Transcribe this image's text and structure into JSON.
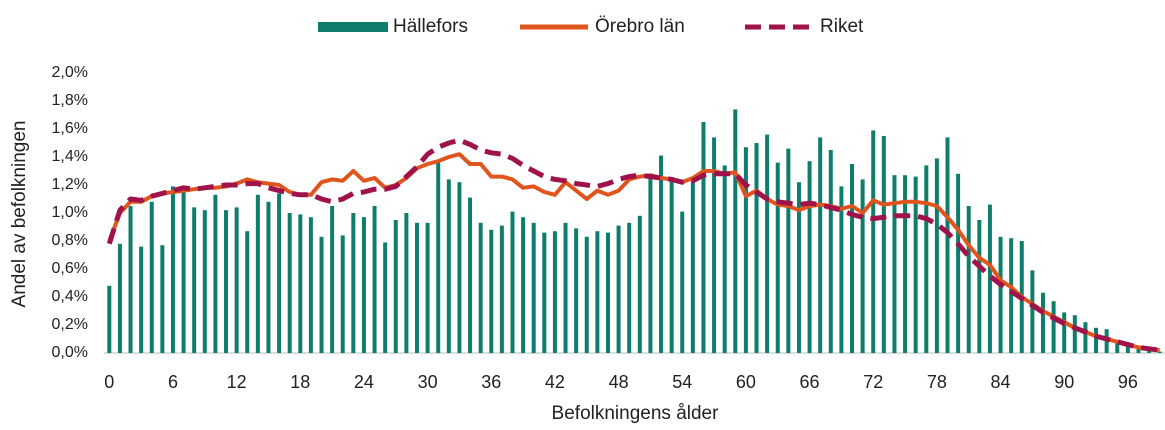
{
  "chart_data": {
    "type": "bar_line",
    "x_label": "Befolkningens ålder",
    "y_label": "Andel av befolkningen",
    "categories": [
      "0",
      null,
      null,
      null,
      null,
      null,
      "6",
      null,
      null,
      null,
      null,
      null,
      "12",
      null,
      null,
      null,
      null,
      null,
      "18",
      null,
      null,
      null,
      null,
      null,
      "24",
      null,
      null,
      null,
      null,
      null,
      "30",
      null,
      null,
      null,
      null,
      null,
      "36",
      null,
      null,
      null,
      null,
      null,
      "42",
      null,
      null,
      null,
      null,
      null,
      "48",
      null,
      null,
      null,
      null,
      null,
      "54",
      null,
      null,
      null,
      null,
      null,
      "60",
      null,
      null,
      null,
      null,
      null,
      "66",
      null,
      null,
      null,
      null,
      null,
      "72",
      null,
      null,
      null,
      null,
      null,
      "78",
      null,
      null,
      null,
      null,
      null,
      "84",
      null,
      null,
      null,
      null,
      null,
      "90",
      null,
      null,
      null,
      null,
      null,
      "96",
      null,
      null,
      null
    ],
    "series": [
      {
        "name": "Hällefors",
        "kind": "bar",
        "color": "#0f7d6c",
        "values": [
          0.48,
          0.78,
          1.05,
          0.76,
          1.08,
          0.77,
          1.19,
          1.17,
          1.04,
          1.02,
          1.13,
          1.02,
          1.04,
          0.87,
          1.13,
          1.08,
          1.14,
          1.0,
          0.99,
          0.97,
          0.83,
          1.05,
          0.84,
          1.0,
          0.97,
          1.05,
          0.79,
          0.95,
          1.0,
          0.93,
          0.93,
          1.36,
          1.24,
          1.22,
          1.11,
          0.93,
          0.88,
          0.91,
          1.01,
          0.97,
          0.93,
          0.86,
          0.87,
          0.93,
          0.89,
          0.83,
          0.87,
          0.86,
          0.91,
          0.93,
          0.98,
          1.26,
          1.41,
          1.24,
          1.01,
          1.23,
          1.65,
          1.54,
          1.34,
          1.74,
          1.47,
          1.5,
          1.56,
          1.36,
          1.46,
          1.22,
          1.37,
          1.54,
          1.45,
          1.19,
          1.35,
          1.24,
          1.59,
          1.55,
          1.27,
          1.27,
          1.26,
          1.34,
          1.39,
          1.54,
          1.28,
          1.05,
          0.95,
          1.06,
          0.83,
          0.82,
          0.8,
          0.59,
          0.43,
          0.37,
          0.29,
          0.27,
          0.22,
          0.18,
          0.17,
          0.08,
          0.05,
          0.03,
          0.02,
          0.01
        ]
      },
      {
        "name": "Örebro län",
        "kind": "line",
        "color": "#e0541e",
        "values": [
          0.8,
          1.0,
          1.08,
          1.08,
          1.12,
          1.14,
          1.15,
          1.16,
          1.17,
          1.18,
          1.18,
          1.19,
          1.21,
          1.24,
          1.22,
          1.21,
          1.2,
          1.15,
          1.13,
          1.13,
          1.22,
          1.24,
          1.23,
          1.3,
          1.23,
          1.25,
          1.18,
          1.2,
          1.25,
          1.32,
          1.35,
          1.37,
          1.4,
          1.42,
          1.35,
          1.35,
          1.26,
          1.26,
          1.24,
          1.18,
          1.19,
          1.15,
          1.13,
          1.22,
          1.16,
          1.1,
          1.16,
          1.13,
          1.16,
          1.24,
          1.26,
          1.27,
          1.25,
          1.24,
          1.22,
          1.25,
          1.3,
          1.3,
          1.28,
          1.29,
          1.12,
          1.16,
          1.1,
          1.06,
          1.05,
          1.02,
          1.05,
          1.06,
          1.05,
          1.03,
          1.05,
          1.0,
          1.09,
          1.06,
          1.07,
          1.08,
          1.08,
          1.07,
          1.05,
          0.97,
          0.88,
          0.77,
          0.68,
          0.63,
          0.52,
          0.47,
          0.4,
          0.35,
          0.3,
          0.26,
          0.22,
          0.18,
          0.15,
          0.12,
          0.1,
          0.08,
          0.06,
          0.04,
          0.03,
          0.02
        ]
      },
      {
        "name": "Riket",
        "kind": "dashed",
        "color": "#a0124a",
        "values": [
          0.78,
          1.02,
          1.1,
          1.09,
          1.12,
          1.14,
          1.16,
          1.18,
          1.17,
          1.18,
          1.19,
          1.2,
          1.2,
          1.21,
          1.21,
          1.18,
          1.16,
          1.14,
          1.13,
          1.13,
          1.1,
          1.08,
          1.1,
          1.14,
          1.15,
          1.17,
          1.17,
          1.19,
          1.26,
          1.33,
          1.42,
          1.47,
          1.5,
          1.52,
          1.49,
          1.45,
          1.43,
          1.42,
          1.39,
          1.34,
          1.3,
          1.26,
          1.24,
          1.23,
          1.21,
          1.2,
          1.19,
          1.21,
          1.24,
          1.26,
          1.27,
          1.26,
          1.25,
          1.24,
          1.22,
          1.23,
          1.27,
          1.28,
          1.28,
          1.28,
          1.2,
          1.15,
          1.1,
          1.08,
          1.07,
          1.06,
          1.07,
          1.06,
          1.04,
          1.02,
          0.99,
          0.97,
          0.96,
          0.97,
          0.98,
          0.98,
          0.98,
          0.96,
          0.92,
          0.86,
          0.78,
          0.69,
          0.62,
          0.55,
          0.49,
          0.44,
          0.39,
          0.34,
          0.29,
          0.25,
          0.21,
          0.18,
          0.15,
          0.12,
          0.1,
          0.08,
          0.06,
          0.04,
          0.03,
          0.02
        ]
      }
    ],
    "ylim": [
      0,
      2
    ],
    "yticks": [
      {
        "value": 0,
        "label": "0,0%"
      },
      {
        "value": 0.2,
        "label": "0,2%"
      },
      {
        "value": 0.4,
        "label": "0,4%"
      },
      {
        "value": 0.6,
        "label": "0,6%"
      },
      {
        "value": 0.8,
        "label": "0,8%"
      },
      {
        "value": 1.0,
        "label": "1,0%"
      },
      {
        "value": 1.2,
        "label": "1,2%"
      },
      {
        "value": 1.4,
        "label": "1,4%"
      },
      {
        "value": 1.6,
        "label": "1,6%"
      },
      {
        "value": 1.8,
        "label": "1,8%"
      },
      {
        "value": 2.0,
        "label": "2,0%"
      }
    ],
    "legend": "top"
  }
}
